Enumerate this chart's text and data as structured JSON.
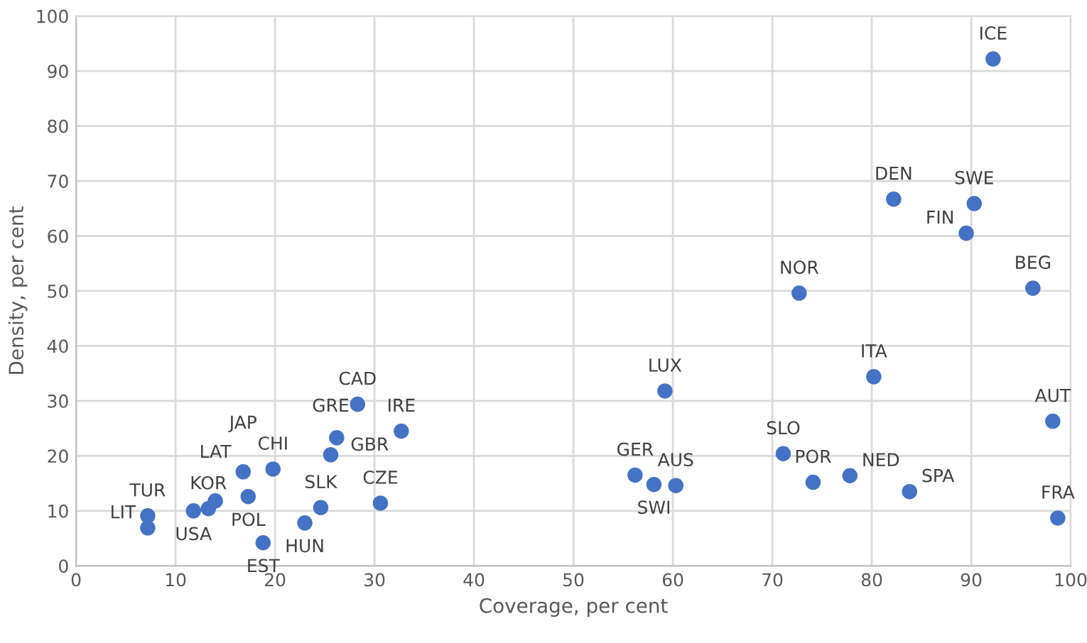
{
  "chart_data": {
    "type": "scatter",
    "xlabel": "Coverage, per cent",
    "ylabel": "Density, per cent",
    "x": [
      7.2,
      7.2,
      11.8,
      13.3,
      14.0,
      16.8,
      17.3,
      19.8,
      18.8,
      23.0,
      24.6,
      30.6,
      25.6,
      26.2,
      28.3,
      32.7,
      56.2,
      58.1,
      60.3,
      59.2,
      71.1,
      74.1,
      77.8,
      80.2,
      83.8,
      72.7,
      82.2,
      89.5,
      90.3,
      92.2,
      96.2,
      98.2,
      98.7
    ],
    "series": [
      {
        "color": "#4472c4",
        "values": [
          9.1,
          6.9,
          10.0,
          10.4,
          11.8,
          17.1,
          12.6,
          17.6,
          4.2,
          7.8,
          10.6,
          11.4,
          20.2,
          23.3,
          29.4,
          24.5,
          16.5,
          14.8,
          14.6,
          31.8,
          20.4,
          15.2,
          16.4,
          34.4,
          13.5,
          49.6,
          66.7,
          60.5,
          65.9,
          92.2,
          50.5,
          26.3,
          8.7
        ]
      }
    ],
    "annotations": [
      {
        "text": "TUR",
        "x": 7.2,
        "y": 9.1
      },
      {
        "text": "LIT",
        "x": 7.2,
        "y": 6.9
      },
      {
        "text": "USA",
        "x": 11.8,
        "y": 10.0
      },
      {
        "text": "KOR",
        "x": 13.3,
        "y": 10.4
      },
      {
        "text": "LAT",
        "x": 14.0,
        "y": 11.8
      },
      {
        "text": "JAP",
        "x": 16.8,
        "y": 17.1
      },
      {
        "text": "POL",
        "x": 17.3,
        "y": 12.6
      },
      {
        "text": "CHI",
        "x": 19.8,
        "y": 17.6
      },
      {
        "text": "EST",
        "x": 18.8,
        "y": 4.2
      },
      {
        "text": "HUN",
        "x": 23.0,
        "y": 7.8
      },
      {
        "text": "SLK",
        "x": 24.6,
        "y": 10.6
      },
      {
        "text": "CZE",
        "x": 30.6,
        "y": 11.4
      },
      {
        "text": "GRE",
        "x": 25.6,
        "y": 20.2
      },
      {
        "text": "GBR",
        "x": 26.2,
        "y": 23.3
      },
      {
        "text": "CAD",
        "x": 28.3,
        "y": 29.4
      },
      {
        "text": "IRE",
        "x": 32.7,
        "y": 24.5
      },
      {
        "text": "GER",
        "x": 56.2,
        "y": 16.5
      },
      {
        "text": "SWI",
        "x": 58.1,
        "y": 14.8
      },
      {
        "text": "AUS",
        "x": 60.3,
        "y": 14.6
      },
      {
        "text": "LUX",
        "x": 59.2,
        "y": 31.8
      },
      {
        "text": "SLO",
        "x": 71.1,
        "y": 20.4
      },
      {
        "text": "POR",
        "x": 74.1,
        "y": 15.2
      },
      {
        "text": "NED",
        "x": 77.8,
        "y": 16.4
      },
      {
        "text": "ITA",
        "x": 80.2,
        "y": 34.4
      },
      {
        "text": "SPA",
        "x": 83.8,
        "y": 13.5
      },
      {
        "text": "NOR",
        "x": 72.7,
        "y": 49.6
      },
      {
        "text": "DEN",
        "x": 82.2,
        "y": 66.7
      },
      {
        "text": "FIN",
        "x": 89.5,
        "y": 60.5
      },
      {
        "text": "SWE",
        "x": 90.3,
        "y": 65.9
      },
      {
        "text": "ICE",
        "x": 92.2,
        "y": 92.2
      },
      {
        "text": "BEG",
        "x": 96.2,
        "y": 50.5
      },
      {
        "text": "AUT",
        "x": 98.2,
        "y": 26.3
      },
      {
        "text": "FRA",
        "x": 98.7,
        "y": 8.7
      }
    ],
    "xlim": [
      0,
      100
    ],
    "xticks": [
      0,
      10,
      20,
      30,
      40,
      50,
      60,
      70,
      80,
      90,
      100
    ],
    "ylim": [
      0,
      100
    ],
    "yticks": [
      0,
      10,
      20,
      30,
      40,
      50,
      60,
      70,
      80,
      90,
      100
    ],
    "grid": true,
    "marker": "circle"
  }
}
